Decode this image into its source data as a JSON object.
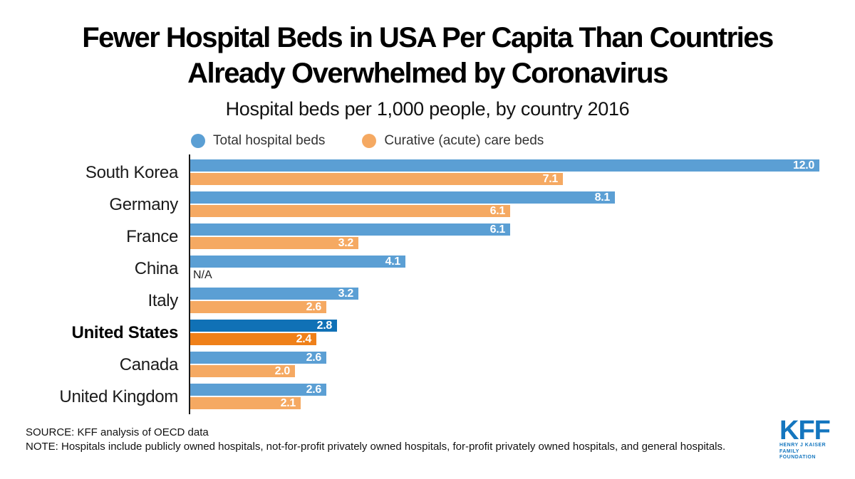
{
  "title": {
    "line1": "Fewer Hospital Beds in USA Per Capita Than Countries",
    "line2": "Already Overwhelmed by Coronavirus",
    "subtitle": "Hospital beds per 1,000 people, by country 2016"
  },
  "legend": {
    "items": [
      {
        "label": "Total hospital beds",
        "color": "#5b9fd4"
      },
      {
        "label": "Curative (acute) care beds",
        "color": "#f5a962"
      }
    ]
  },
  "chart_data": {
    "type": "bar",
    "orientation": "horizontal",
    "title": "Fewer Hospital Beds in USA Per Capita Than Countries Already Overwhelmed by Coronavirus",
    "subtitle": "Hospital beds per 1,000 people, by country 2016",
    "categories": [
      "South Korea",
      "Germany",
      "France",
      "China",
      "Italy",
      "United States",
      "Canada",
      "United Kingdom"
    ],
    "series": [
      {
        "name": "Total hospital beds",
        "color": "#5b9fd4",
        "highlight_color": "#1071b6",
        "values": [
          12.0,
          8.1,
          6.1,
          4.1,
          3.2,
          2.8,
          2.6,
          2.6
        ]
      },
      {
        "name": "Curative (acute) care beds",
        "color": "#f5a962",
        "highlight_color": "#ef8019",
        "values": [
          7.1,
          6.1,
          3.2,
          null,
          2.6,
          2.4,
          2.0,
          2.1
        ]
      }
    ],
    "highlighted_category": "United States",
    "na_label": "N/A",
    "xlim": [
      0,
      12.2
    ],
    "value_labels": true,
    "legend_position": "top",
    "grid": false
  },
  "footer": {
    "source": "SOURCE: KFF analysis of OECD data",
    "note": "NOTE: Hospitals include publicly owned hospitals, not-for-profit privately owned hospitals, for-profit privately owned hospitals, and general hospitals."
  },
  "logo": {
    "text": "KFF",
    "sub_line1": "HENRY J KAISER",
    "sub_line2": "FAMILY FOUNDATION",
    "color": "#1476bf"
  }
}
